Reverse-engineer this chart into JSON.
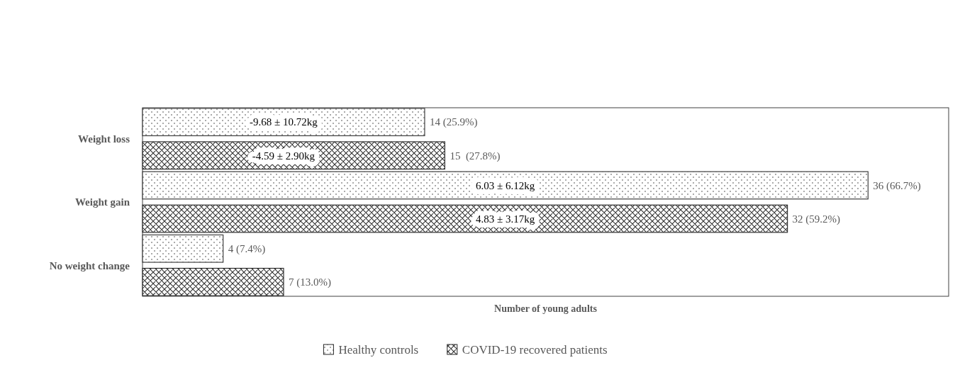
{
  "chart_data": {
    "type": "bar",
    "orientation": "horizontal",
    "xlabel": "Number of young adults",
    "categories": [
      "Weight loss",
      "Weight gain",
      "No weight change"
    ],
    "series": [
      {
        "name": "Healthy controls",
        "color": "#404040",
        "values": [
          14,
          36,
          4
        ],
        "value_labels": [
          "14 (25.9%)",
          "36 (66.7%)",
          "4 (7.4%)"
        ]
      },
      {
        "name": "COVID-19 recovered patients",
        "color": "#303030",
        "values": [
          15,
          32,
          7
        ],
        "value_labels": [
          "15  (27.8%)",
          "32 (59.2%)",
          "7 (13.0%)"
        ]
      }
    ],
    "xlim": [
      0,
      40
    ],
    "tick_labels": "y",
    "legend": "bottom",
    "annotations": [
      "-9.68 ± 10.72kg",
      "-4.59 ± 2.90kg",
      "6.03 ± 6.12kg",
      "4.83 ± 3.17kg"
    ]
  }
}
